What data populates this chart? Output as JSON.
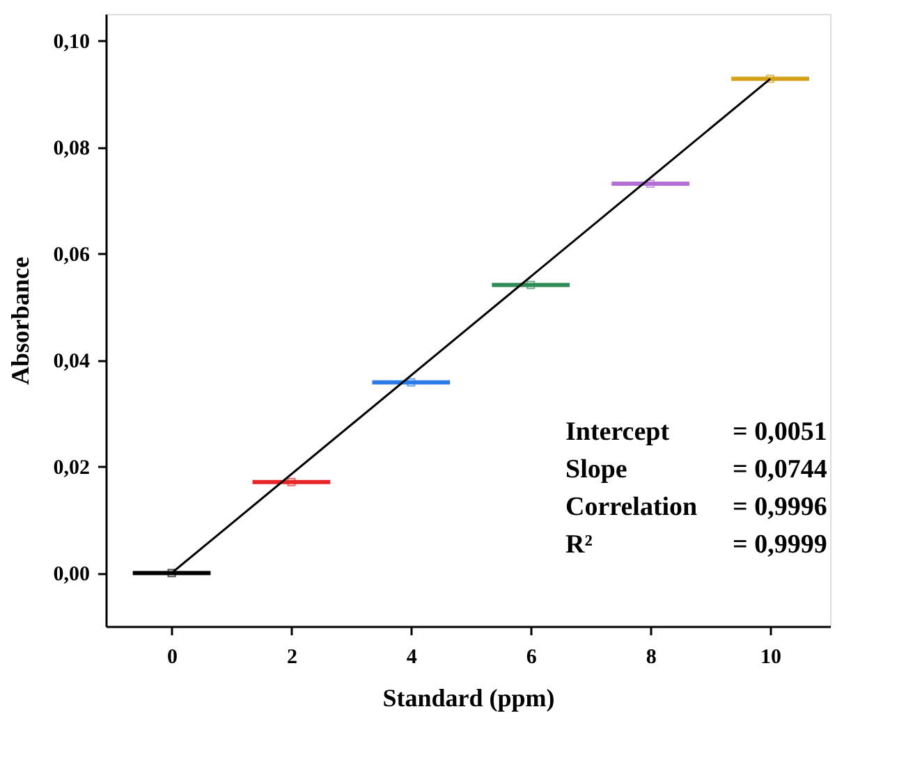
{
  "chart_data": {
    "type": "scatter",
    "xlabel": "Standard (ppm)",
    "ylabel": "Absorbance",
    "x": [
      0,
      2,
      4,
      6,
      8,
      10
    ],
    "series": [
      {
        "marker": "square",
        "values": [
          0.0,
          0.0171,
          0.0358,
          0.0541,
          0.0731,
          0.0928
        ],
        "xerrors": [
          0.65,
          0.65,
          0.65,
          0.65,
          0.65,
          0.65
        ],
        "colors": [
          "#000000",
          "#e8262a",
          "#2a7be8",
          "#2e8b57",
          "#b36fd6",
          "#d4a017"
        ]
      },
      {
        "type": "line",
        "marker": "none",
        "x": [
          0,
          10
        ],
        "values": [
          0.0,
          0.0928
        ],
        "color": "#000000"
      }
    ],
    "xlim": [
      -1.1,
      11
    ],
    "xticks": [
      0,
      2,
      4,
      6,
      8,
      10
    ],
    "ylim": [
      -0.01,
      0.105
    ],
    "yticks": [
      {
        "value": 0,
        "label": "0,00"
      },
      {
        "value": 0.02,
        "label": "0,02"
      },
      {
        "value": 0.04,
        "label": "0,04"
      },
      {
        "value": 0.06,
        "label": "0,06"
      },
      {
        "value": 0.08,
        "label": "0,08"
      },
      {
        "value": 0.1,
        "label": "0,10"
      }
    ],
    "annotations": [
      "Intercept",
      "= 0,0051",
      "Slope",
      "= 0,0744",
      "Correlation",
      "= 0,9996",
      "R²",
      "= 0,9999"
    ],
    "grid": false,
    "legend": false
  }
}
